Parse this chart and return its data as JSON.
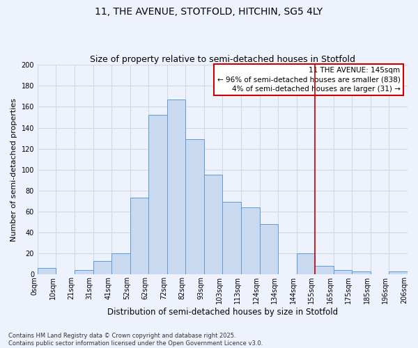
{
  "title": "11, THE AVENUE, STOTFOLD, HITCHIN, SG5 4LY",
  "subtitle": "Size of property relative to semi-detached houses in Stotfold",
  "xlabel": "Distribution of semi-detached houses by size in Stotfold",
  "ylabel": "Number of semi-detached properties",
  "bar_labels": [
    "0sqm",
    "10sqm",
    "21sqm",
    "31sqm",
    "41sqm",
    "52sqm",
    "62sqm",
    "72sqm",
    "82sqm",
    "93sqm",
    "103sqm",
    "113sqm",
    "124sqm",
    "134sqm",
    "144sqm",
    "155sqm",
    "165sqm",
    "175sqm",
    "185sqm",
    "196sqm",
    "206sqm"
  ],
  "bar_values": [
    6,
    0,
    4,
    13,
    20,
    73,
    152,
    167,
    129,
    95,
    69,
    64,
    48,
    0,
    20,
    8,
    4,
    3,
    0,
    3
  ],
  "bar_color": "#c9d9f0",
  "bar_edge_color": "#5b9bd5",
  "vline_color": "#cc0000",
  "annotation_text": "11 THE AVENUE: 145sqm\n← 96% of semi-detached houses are smaller (838)\n4% of semi-detached houses are larger (31) →",
  "annotation_box_color": "#ffffff",
  "annotation_box_edge_color": "#cc0000",
  "ylim": [
    0,
    200
  ],
  "yticks": [
    0,
    20,
    40,
    60,
    80,
    100,
    120,
    140,
    160,
    180,
    200
  ],
  "grid_color": "#d0d8e8",
  "bg_color": "#eef2fc",
  "footnote": "Contains HM Land Registry data © Crown copyright and database right 2025.\nContains public sector information licensed under the Open Government Licence v3.0.",
  "title_fontsize": 10,
  "subtitle_fontsize": 9,
  "xlabel_fontsize": 8.5,
  "ylabel_fontsize": 8,
  "tick_fontsize": 7,
  "annotation_fontsize": 7.5,
  "footnote_fontsize": 6
}
